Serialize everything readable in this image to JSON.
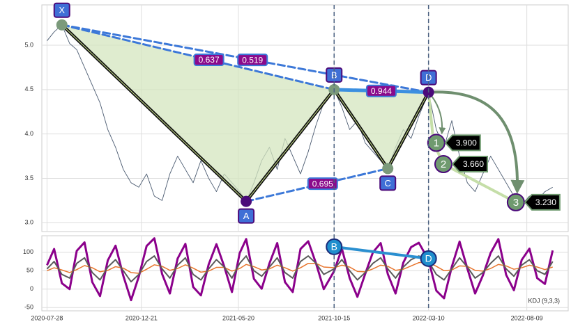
{
  "chart_data": [
    {
      "type": "line",
      "xlim": [
        "2020-07-20",
        "2022-10-12"
      ],
      "ylim": [
        2.9,
        5.455
      ],
      "yticks": [
        {
          "value": 3,
          "label": "3.0"
        },
        3.5,
        {
          "value": 4,
          "label": "4.0"
        },
        4.5,
        {
          "value": 5,
          "label": "5.0"
        }
      ],
      "grid": true,
      "x": [
        "2020-07-28",
        "2020-08-08",
        "2020-08-20",
        "2020-09-01",
        "2020-09-12",
        "2020-09-24",
        "2020-10-06",
        "2020-10-18",
        "2020-10-30",
        "2020-11-11",
        "2020-11-23",
        "2020-12-05",
        "2020-12-17",
        "2020-12-29",
        "2021-01-10",
        "2021-01-22",
        "2021-02-03",
        "2021-02-15",
        "2021-02-27",
        "2021-03-11",
        "2021-03-23",
        "2021-04-04",
        "2021-04-16",
        "2021-04-28",
        "2021-05-10",
        "2021-05-22",
        "2021-06-01",
        "2021-06-13",
        "2021-06-25",
        "2021-07-07",
        "2021-07-19",
        "2021-07-31",
        "2021-08-12",
        "2021-08-24",
        "2021-09-05",
        "2021-09-17",
        "2021-09-29",
        "2021-10-15",
        "2021-10-27",
        "2021-11-08",
        "2021-11-20",
        "2021-12-02",
        "2021-12-14",
        "2021-12-26",
        "2022-01-06",
        "2022-01-18",
        "2022-01-30",
        "2022-02-11",
        "2022-02-23",
        "2022-03-10",
        "2022-03-22",
        "2022-04-03",
        "2022-04-15",
        "2022-04-27",
        "2022-05-09",
        "2022-05-21",
        "2022-06-02",
        "2022-06-14",
        "2022-06-26",
        "2022-07-08",
        "2022-07-20",
        "2022-08-01",
        "2022-08-13",
        "2022-08-25",
        "2022-09-06",
        "2022-09-18"
      ],
      "series": [
        {
          "color": "#4a5a70",
          "values": [
            5.05,
            5.15,
            5.23,
            5.02,
            4.95,
            4.75,
            4.55,
            4.35,
            4.05,
            3.85,
            3.6,
            3.45,
            3.4,
            3.55,
            3.3,
            3.25,
            3.55,
            3.75,
            3.6,
            3.45,
            3.7,
            3.5,
            3.35,
            3.55,
            3.45,
            3.35,
            3.24,
            3.45,
            3.7,
            3.85,
            3.6,
            3.95,
            3.75,
            3.55,
            3.8,
            4.1,
            4.35,
            4.5,
            4.3,
            4.05,
            4.15,
            3.9,
            3.8,
            3.7,
            3.61,
            3.85,
            4.05,
            3.95,
            4.2,
            4.47,
            4.05,
            3.85,
            4.15,
            3.75,
            3.45,
            3.35,
            3.55,
            3.75,
            3.6,
            3.45,
            3.3,
            3.2,
            3.3,
            3.25,
            3.35,
            3.4
          ]
        }
      ],
      "pattern": {
        "labels": [
          "X",
          "A",
          "B",
          "C",
          "D"
        ],
        "x": [
          "2020-08-20",
          "2021-06-01",
          "2021-10-15",
          "2022-01-06",
          "2022-03-10"
        ],
        "values": [
          5.23,
          3.24,
          4.5,
          3.61,
          4.47
        ],
        "point_colors": [
          "#7b9a7b",
          "#4b0a7a",
          "#7b9a7b",
          "#7b9a7b",
          "#4b0a7a"
        ]
      },
      "ratios": [
        0.637,
        0.519,
        0.695,
        0.944
      ],
      "targets": {
        "labels": [
          "1",
          "2",
          "3"
        ],
        "x": [
          "2022-03-22",
          "2022-04-02",
          "2022-07-23"
        ],
        "values": [
          3.9,
          3.66,
          3.23
        ],
        "value_labels": [
          "3.900",
          "3.660",
          "3.230"
        ]
      }
    },
    {
      "type": "line",
      "xlim": [
        "2020-07-20",
        "2022-10-12"
      ],
      "ylim": [
        -59,
        145
      ],
      "yticks": [
        -50,
        0,
        50,
        100
      ],
      "xticks": [
        "2020-07-28",
        "2020-12-21",
        "2021-05-20",
        "2021-10-15",
        "2022-03-10",
        "2022-08-09"
      ],
      "grid": true,
      "annotation": "KDJ (9,3,3)",
      "x": [
        "2020-07-28",
        "2020-08-08",
        "2020-08-20",
        "2020-09-01",
        "2020-09-12",
        "2020-09-24",
        "2020-10-06",
        "2020-10-18",
        "2020-10-30",
        "2020-11-11",
        "2020-11-23",
        "2020-12-05",
        "2020-12-17",
        "2020-12-29",
        "2021-01-10",
        "2021-01-22",
        "2021-02-03",
        "2021-02-15",
        "2021-02-27",
        "2021-03-11",
        "2021-03-23",
        "2021-04-04",
        "2021-04-16",
        "2021-04-28",
        "2021-05-10",
        "2021-05-22",
        "2021-06-01",
        "2021-06-13",
        "2021-06-25",
        "2021-07-07",
        "2021-07-19",
        "2021-07-31",
        "2021-08-12",
        "2021-08-24",
        "2021-09-05",
        "2021-09-17",
        "2021-09-29",
        "2021-10-15",
        "2021-10-27",
        "2021-11-08",
        "2021-11-20",
        "2021-12-02",
        "2021-12-14",
        "2021-12-26",
        "2022-01-06",
        "2022-01-18",
        "2022-01-30",
        "2022-02-11",
        "2022-02-23",
        "2022-03-10",
        "2022-03-22",
        "2022-04-03",
        "2022-04-15",
        "2022-04-27",
        "2022-05-09",
        "2022-05-21",
        "2022-06-02",
        "2022-06-14",
        "2022-06-26",
        "2022-07-08",
        "2022-07-20",
        "2022-08-01",
        "2022-08-13",
        "2022-08-25",
        "2022-09-06",
        "2022-09-18"
      ],
      "series": [
        {
          "color": "#8b008b",
          "width": 3,
          "values": [
            65,
            109,
            16,
            0,
            104,
            127,
            19,
            -19,
            78,
            118,
            36,
            -30,
            34,
            117,
            138,
            41,
            -12,
            83,
            123,
            6,
            -17,
            67,
            122,
            62,
            -8,
            98,
            136,
            28,
            1,
            70,
            125,
            19,
            -8,
            109,
            130,
            70,
            0,
            49,
            110,
            30,
            -21,
            41,
            100,
            125,
            41,
            -12,
            72,
            114,
            126,
            79,
            -4,
            -25,
            61,
            129,
            56,
            -12,
            37,
            98,
            136,
            39,
            -3,
            79,
            110,
            30,
            14,
            105
          ]
        },
        {
          "color": "#e8742c",
          "width": 1.5,
          "values": [
            50,
            58,
            52,
            45,
            53,
            64,
            58,
            47,
            51,
            61,
            57,
            45,
            43,
            54,
            66,
            62,
            51,
            56,
            66,
            57,
            46,
            49,
            59,
            59,
            49,
            56,
            67,
            61,
            52,
            55,
            65,
            58,
            49,
            58,
            70,
            70,
            60,
            58,
            65,
            60,
            48,
            47,
            55,
            65,
            62,
            51,
            54,
            63,
            72,
            73,
            62,
            50,
            52,
            63,
            62,
            51,
            49,
            56,
            67,
            63,
            54,
            58,
            65,
            60,
            53,
            60
          ]
        },
        {
          "color": "#5a5a5a",
          "width": 2,
          "values": [
            55,
            75,
            40,
            30,
            70,
            85,
            45,
            25,
            60,
            80,
            50,
            20,
            40,
            75,
            90,
            55,
            30,
            65,
            85,
            40,
            25,
            55,
            80,
            60,
            30,
            70,
            90,
            50,
            35,
            60,
            85,
            45,
            30,
            75,
            90,
            70,
            40,
            55,
            80,
            50,
            25,
            45,
            70,
            85,
            55,
            30,
            60,
            80,
            90,
            75,
            40,
            25,
            55,
            85,
            60,
            30,
            45,
            70,
            90,
            55,
            35,
            65,
            80,
            50,
            40,
            75
          ]
        }
      ],
      "markers": {
        "labels": [
          "B",
          "D"
        ],
        "x": [
          "2021-10-15",
          "2022-03-10"
        ],
        "values": [
          115,
          83
        ]
      }
    }
  ]
}
